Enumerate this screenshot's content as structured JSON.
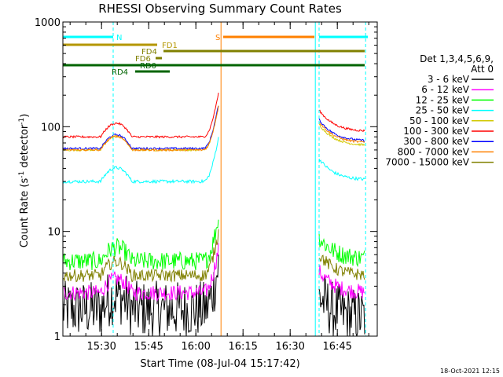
{
  "chart_data": {
    "type": "line",
    "title": "RHESSI Observing Summary Count Rates",
    "xlabel": "Start Time (08-Jul-04 15:17:42)",
    "ylabel_parts": [
      "Count Rate (s",
      "-1",
      " detector",
      "-1",
      ")"
    ],
    "yscale": "log",
    "ylim": [
      1,
      1000
    ],
    "xlim_minutes": [
      0,
      100
    ],
    "x_ticks": [
      {
        "min": 12.3,
        "label": "15:30"
      },
      {
        "min": 27.3,
        "label": "15:45"
      },
      {
        "min": 42.3,
        "label": "16:00"
      },
      {
        "min": 57.3,
        "label": "16:15"
      },
      {
        "min": 72.3,
        "label": "16:30"
      },
      {
        "min": 87.3,
        "label": "16:45"
      }
    ],
    "y_ticks": [
      {
        "value": 1,
        "label": "1"
      },
      {
        "value": 10,
        "label": "10"
      },
      {
        "value": 100,
        "label": "100"
      },
      {
        "value": 1000,
        "label": "1000"
      }
    ],
    "legend_header": [
      "Det 1,3,4,5,6,9,",
      "Att 0"
    ],
    "series": [
      {
        "name": "3 - 6 keV",
        "color": "#000000",
        "pre": 1.8,
        "post": 1.5,
        "noise": 0.55
      },
      {
        "name": "6 - 12 keV",
        "color": "#ff00ff",
        "pre": 2.6,
        "post": 2.6,
        "noise": 0.15
      },
      {
        "name": "12 - 25 keV",
        "color": "#00ff00",
        "pre": 5.2,
        "post": 5.5,
        "noise": 0.18
      },
      {
        "name": "25 - 50 keV",
        "color": "#00ffff",
        "pre": 30,
        "post": 31,
        "noise": 0.03
      },
      {
        "name": "50 - 100 keV",
        "color": "#d2c800",
        "pre": 60,
        "post": 66,
        "noise": 0.02
      },
      {
        "name": "100 - 300 keV",
        "color": "#ff0000",
        "pre": 80,
        "post": 90,
        "noise": 0.02
      },
      {
        "name": "300 - 800 keV",
        "color": "#0000ff",
        "pre": 62,
        "post": 73,
        "noise": 0.02
      },
      {
        "name": "800 - 7000 keV",
        "color": "#ff8000",
        "pre": 60,
        "post": 70,
        "noise": 0.02
      },
      {
        "name": "7000 - 15000 keV",
        "color": "#808000",
        "pre": 3.8,
        "post": 3.8,
        "noise": 0.12
      }
    ],
    "flag_bars": [
      {
        "label": "N",
        "color": "#00ffff",
        "segments": [
          [
            0,
            16
          ],
          [
            81.5,
            97
          ]
        ],
        "label_at": 17,
        "row": 0
      },
      {
        "label": "S",
        "color": "#ff8000",
        "segments": [
          [
            51,
            80
          ]
        ],
        "label_at": 48.5,
        "row": 0
      },
      {
        "label": "FD1",
        "color": "#b49600",
        "segments": [
          [
            0,
            30
          ]
        ],
        "label_at": 31.5,
        "row": 1
      },
      {
        "label": "FD4",
        "color": "#808000",
        "segments": [
          [
            32,
            96
          ]
        ],
        "label_at": 25,
        "row": 2
      },
      {
        "label": "FD6",
        "color": "#808000",
        "segments": [
          [
            29.5,
            31.5
          ]
        ],
        "label_at": 23,
        "row": 3
      },
      {
        "label": "RD0",
        "color": "#006400",
        "segments": [
          [
            0,
            96
          ]
        ],
        "label_at": 24.5,
        "row": 4
      },
      {
        "label": "RD4",
        "color": "#006400",
        "segments": [
          [
            23,
            34
          ]
        ],
        "label_at": 15.5,
        "row": 5
      }
    ],
    "vlines": [
      {
        "min": 0,
        "color": "#00ffff",
        "style": "solid"
      },
      {
        "min": 16,
        "color": "#00ffff",
        "style": "dashed"
      },
      {
        "min": 50.3,
        "color": "#ff8000",
        "style": "solid"
      },
      {
        "min": 80.3,
        "color": "#00ffff",
        "style": "solid"
      },
      {
        "min": 81.5,
        "color": "#00ffff",
        "style": "dashed"
      },
      {
        "min": 96.3,
        "color": "#00ffff",
        "style": "dashed"
      }
    ]
  },
  "footer": {
    "timestamp": "18-Oct-2021 12:15"
  }
}
